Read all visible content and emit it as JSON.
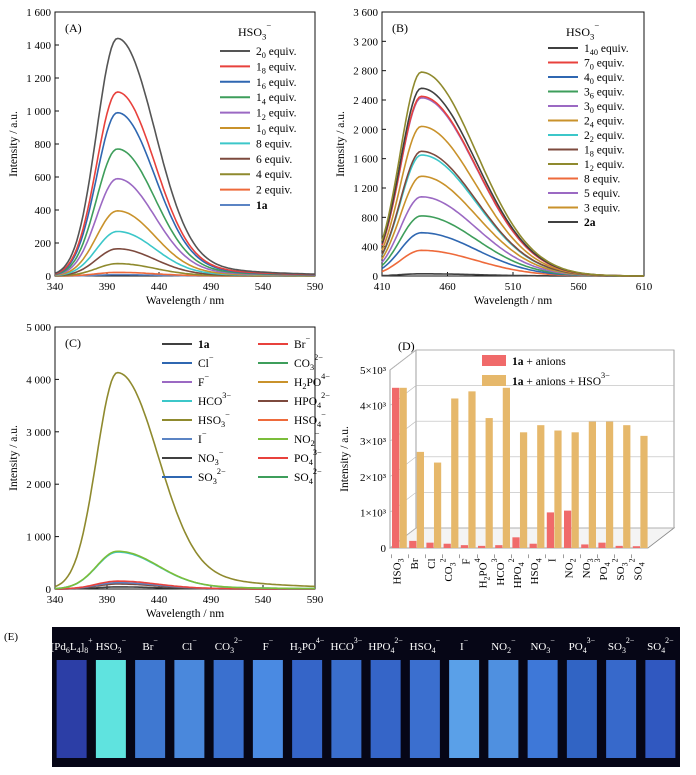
{
  "panels": {
    "A": {
      "label": "(A)"
    },
    "B": {
      "label": "(B)"
    },
    "C": {
      "label": "(C)"
    },
    "D": {
      "label": "(D)"
    },
    "E": {
      "label": "(E)"
    }
  },
  "colors": {
    "dark_gray": "#404040",
    "red": "#e8413c",
    "blue": "#2f67b1",
    "green": "#3e9e5b",
    "purple": "#9b69c3",
    "gold": "#c9922b",
    "cyan": "#3cc7c9",
    "brown": "#7d4a3e",
    "olive": "#8f8a2e",
    "orange": "#ee6a3b",
    "steel": "#5b84c4",
    "olive_green": "#7e8b3a",
    "pink_bar": "#f06a6a",
    "tan_bar": "#e6b86b"
  },
  "chart_data": [
    {
      "panel": "A",
      "type": "line",
      "legend_title": "HSO3−",
      "xlabel": "Wavelength / nm",
      "ylabel": "Intensity / a.u.",
      "xlim": [
        340,
        590
      ],
      "ylim": [
        0,
        1600
      ],
      "xticks": [
        "340",
        "390",
        "440",
        "490",
        "540",
        "590"
      ],
      "yticks": [
        "0",
        "200",
        "400",
        "600",
        "800",
        "1 000",
        "1 200",
        "1 400",
        "1 600"
      ],
      "peak_x": 400,
      "series": [
        {
          "name": "20 equiv.",
          "peak": 1440,
          "color": "#555555"
        },
        {
          "name": "18 equiv.",
          "peak": 1115,
          "color": "#e8413c"
        },
        {
          "name": "16 equiv.",
          "peak": 990,
          "color": "#2f67b1"
        },
        {
          "name": "14 equiv.",
          "peak": 770,
          "color": "#3e9e5b"
        },
        {
          "name": "12 equiv.",
          "peak": 590,
          "color": "#9b69c3"
        },
        {
          "name": "10 equiv.",
          "peak": 395,
          "color": "#c9922b"
        },
        {
          "name": "8 equiv.",
          "peak": 270,
          "color": "#3cc7c9"
        },
        {
          "name": "6 equiv.",
          "peak": 165,
          "color": "#7d4a3e"
        },
        {
          "name": "4 equiv.",
          "peak": 75,
          "color": "#8f8a2e"
        },
        {
          "name": "2 equiv.",
          "peak": 22,
          "color": "#ee6a3b"
        },
        {
          "name": "1a",
          "peak": 8,
          "color": "#5b84c4",
          "bold": true
        }
      ]
    },
    {
      "panel": "B",
      "type": "line",
      "legend_title": "HSO3−",
      "xlabel": "Wavelength / nm",
      "ylabel": "Intensity / a.u.",
      "xlim": [
        410,
        610
      ],
      "ylim": [
        0,
        3600
      ],
      "xticks": [
        "410",
        "460",
        "510",
        "560",
        "610"
      ],
      "yticks": [
        "0",
        "400",
        "800",
        "1 200",
        "1 600",
        "2 000",
        "2 400",
        "2 800",
        "3 200",
        "3 600"
      ],
      "peak_x": 440,
      "series": [
        {
          "name": "140 equiv.",
          "peak": 2560,
          "color": "#404040"
        },
        {
          "name": "70 equiv.",
          "peak": 2450,
          "color": "#e8413c"
        },
        {
          "name": "40 equiv.",
          "peak": 590,
          "color": "#2f67b1"
        },
        {
          "name": "36 equiv.",
          "peak": 820,
          "color": "#3e9e5b"
        },
        {
          "name": "30 equiv.",
          "peak": 2430,
          "color": "#9b69c3"
        },
        {
          "name": "24 equiv.",
          "peak": 2040,
          "color": "#c9922b"
        },
        {
          "name": "22 equiv.",
          "peak": 1650,
          "color": "#3cc7c9"
        },
        {
          "name": "18 equiv.",
          "peak": 1700,
          "color": "#7d4a3e"
        },
        {
          "name": "12 equiv.",
          "peak": 2780,
          "color": "#8f8a2e"
        },
        {
          "name": "8 equiv.",
          "peak": 350,
          "color": "#ee6a3b"
        },
        {
          "name": "5 equiv.",
          "peak": 1080,
          "color": "#9b69c3"
        },
        {
          "name": "3 equiv.",
          "peak": 1360,
          "color": "#c9922b"
        },
        {
          "name": "2a",
          "peak": 30,
          "color": "#404040",
          "bold": true
        }
      ]
    },
    {
      "panel": "C",
      "type": "line",
      "xlabel": "Wavelength / nm",
      "ylabel": "Intensity / a.u.",
      "xlim": [
        340,
        590
      ],
      "ylim": [
        0,
        5000
      ],
      "xticks": [
        "340",
        "390",
        "440",
        "490",
        "540",
        "590"
      ],
      "yticks": [
        "0",
        "1 000",
        "2 000",
        "3 000",
        "4 000",
        "5 000"
      ],
      "peak_x": 400,
      "legend": [
        {
          "name": "1a",
          "color": "#404040",
          "bold": true
        },
        {
          "name": "Br−",
          "color": "#e8413c"
        },
        {
          "name": "Cl−",
          "color": "#2f67b1"
        },
        {
          "name": "CO32−",
          "color": "#3e9e5b"
        },
        {
          "name": "F−",
          "color": "#9b69c3"
        },
        {
          "name": "H2PO4−",
          "color": "#c9922b"
        },
        {
          "name": "HCO3−",
          "color": "#3cc7c9"
        },
        {
          "name": "HPO42−",
          "color": "#7d4a3e"
        },
        {
          "name": "HSO3−",
          "color": "#8f8a2e"
        },
        {
          "name": "HSO4−",
          "color": "#ee6a3b"
        },
        {
          "name": "I−",
          "color": "#5b84c4"
        },
        {
          "name": "NO2−",
          "color": "#7bbd3a"
        },
        {
          "name": "NO3−",
          "color": "#404040"
        },
        {
          "name": "PO43−",
          "color": "#e8413c"
        },
        {
          "name": "SO32−",
          "color": "#2f67b1"
        },
        {
          "name": "SO42−",
          "color": "#3e9e5b"
        }
      ],
      "series": [
        {
          "name": "HSO3−",
          "peak": 4130,
          "color": "#8f8a2e"
        },
        {
          "name": "NO2−",
          "peak": 720,
          "color": "#7bbd3a"
        },
        {
          "name": "HCO3−",
          "peak": 705,
          "color": "#3cc7c9"
        },
        {
          "name": "Br−",
          "peak": 150,
          "color": "#e8413c"
        },
        {
          "name": "I−",
          "peak": 120,
          "color": "#5b84c4"
        },
        {
          "name": "HPO42−",
          "peak": 95,
          "color": "#7d4a3e"
        },
        {
          "name": "1a",
          "peak": 40,
          "color": "#404040"
        }
      ]
    },
    {
      "panel": "D",
      "type": "bar",
      "ylabel": "Intensity / a.u.",
      "ylim": [
        0,
        5000
      ],
      "yticks": [
        "0",
        "1×10³",
        "2×10³",
        "3×10³",
        "4×10³",
        "5×10³"
      ],
      "legend": [
        {
          "name": "1a + anions",
          "color": "#f06a6a"
        },
        {
          "name": "1a + anions + HSO3−",
          "color": "#e6b86b"
        }
      ],
      "categories": [
        "HSO3−",
        "Br−",
        "Cl−",
        "CO32−",
        "F−",
        "H2PO4−",
        "HCO3−",
        "HPO42−",
        "HSO4−",
        "I−",
        "NO2−",
        "NO3−",
        "PO43−",
        "SO32−",
        "SO42−"
      ],
      "series": [
        {
          "name": "1a + anions",
          "values": [
            4500,
            200,
            150,
            120,
            80,
            60,
            80,
            300,
            120,
            1000,
            1050,
            100,
            150,
            60,
            50
          ]
        },
        {
          "name": "1a + anions + HSO3−",
          "values": [
            4500,
            2700,
            2400,
            4200,
            4400,
            3650,
            4500,
            3250,
            3450,
            3300,
            3250,
            3550,
            3550,
            3450,
            3150
          ]
        }
      ]
    }
  ],
  "photo_panel": {
    "labels": [
      "[Pd6L4]8+",
      "HSO3−",
      "Br−",
      "Cl−",
      "CO32−",
      "F−",
      "H2PO4−",
      "HCO3−",
      "HPO42−",
      "HSO4−",
      "I−",
      "NO2−",
      "NO3−",
      "PO43−",
      "SO32−",
      "SO42−"
    ],
    "vial_colors": [
      "#2c3ea6",
      "#5fe3df",
      "#3f78d1",
      "#4a88dc",
      "#3a70cf",
      "#4a8ae2",
      "#3565c8",
      "#3a6ecd",
      "#3565c8",
      "#3b6fcf",
      "#5aa0e8",
      "#4f90e0",
      "#3e78d8",
      "#3164c4",
      "#3769cb",
      "#3058c0"
    ]
  }
}
